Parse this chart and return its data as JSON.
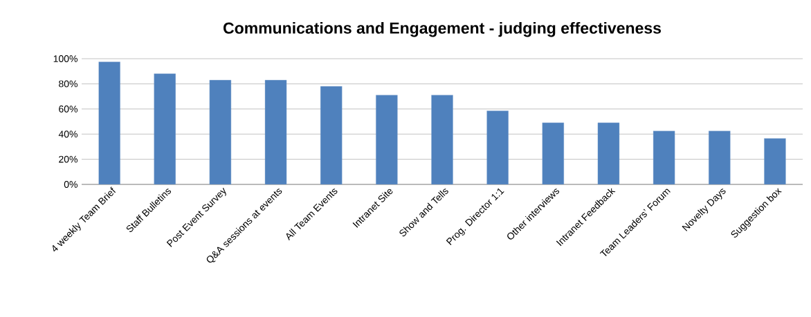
{
  "chart_data": {
    "type": "bar",
    "title": "Communications  and Engagement  - judging effectiveness",
    "categories": [
      "4 weekly Team Brief",
      "Staff Bulletins",
      "Post Event Survey",
      "Q&A sessions at events",
      "All Team Events",
      "Intranet Site",
      "Show and Tells",
      "Prog. Director 1:1",
      "Other interviews",
      "Intranet Feedback",
      "Team Leaders’ Forum",
      "Novelty Days",
      "Suggestion box"
    ],
    "values": [
      97.5,
      88,
      83,
      83,
      78,
      71,
      71,
      58.5,
      49,
      49,
      42.5,
      42.5,
      36.5
    ],
    "color": "#4f81bd",
    "ylim": [
      0,
      100
    ],
    "yticks": [
      {
        "value": 0,
        "label": "0%"
      },
      {
        "value": 20,
        "label": "20%"
      },
      {
        "value": 40,
        "label": "40%"
      },
      {
        "value": 60,
        "label": "60%"
      },
      {
        "value": 80,
        "label": "80%"
      },
      {
        "value": 100,
        "label": "100%"
      }
    ],
    "grid": "y"
  }
}
